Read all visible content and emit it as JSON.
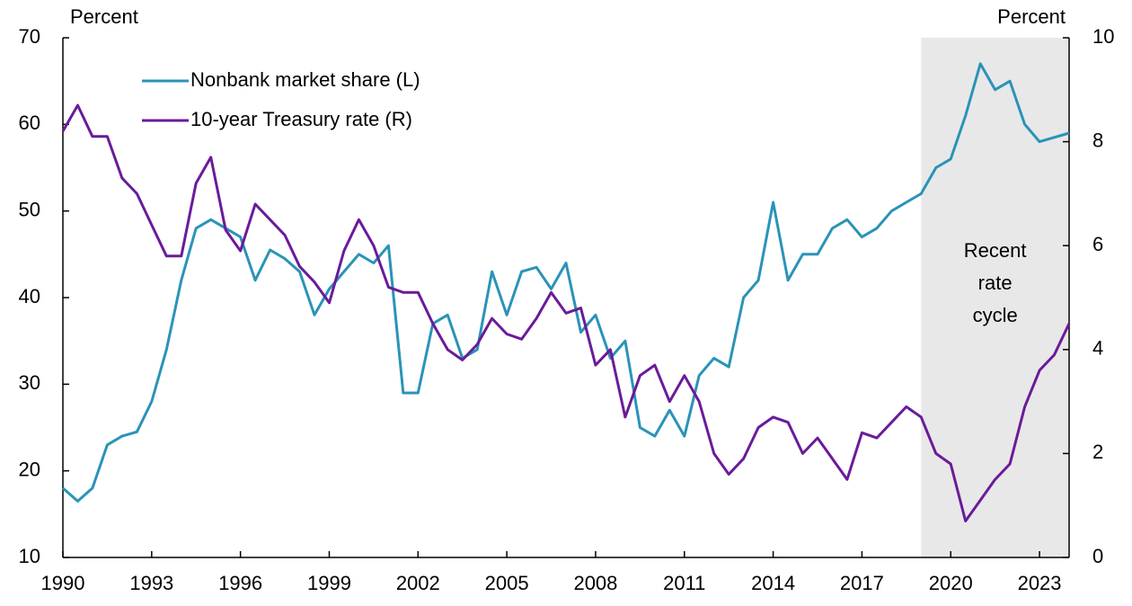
{
  "chart_data": {
    "type": "line",
    "y_label": "Percent",
    "y2_label": "Percent",
    "annotation": [
      "Recent",
      "rate",
      "cycle"
    ],
    "shade": [
      2019,
      2024
    ],
    "x": [
      1990,
      1990.5,
      1991,
      1991.5,
      1992,
      1992.5,
      1993,
      1993.5,
      1994,
      1994.5,
      1995,
      1995.5,
      1996,
      1996.5,
      1997,
      1997.5,
      1998,
      1998.5,
      1999,
      1999.5,
      2000,
      2000.5,
      2001,
      2001.5,
      2002,
      2002.5,
      2003,
      2003.5,
      2004,
      2004.5,
      2005,
      2005.5,
      2006,
      2006.5,
      2007,
      2007.5,
      2008,
      2008.5,
      2009,
      2009.5,
      2010,
      2010.5,
      2011,
      2011.5,
      2012,
      2012.5,
      2013,
      2013.5,
      2014,
      2014.5,
      2015,
      2015.5,
      2016,
      2016.5,
      2017,
      2017.5,
      2018,
      2018.5,
      2019,
      2019.5,
      2020,
      2020.5,
      2021,
      2021.5,
      2022,
      2022.5,
      2023,
      2023.5,
      2024
    ],
    "series": [
      {
        "name": "Nonbank market share (L)",
        "color": "#2a93b8",
        "values": [
          18,
          16.5,
          18,
          23,
          24,
          24.5,
          28,
          34,
          42,
          48,
          49,
          48,
          47,
          42,
          45.5,
          44.5,
          43,
          38,
          41,
          43,
          45,
          44,
          46,
          29,
          29,
          37,
          38,
          33,
          34,
          43,
          38,
          43,
          43.5,
          41,
          44,
          36,
          38,
          33,
          35,
          25,
          24,
          27,
          24,
          31,
          33,
          32,
          40,
          42,
          51,
          42,
          45,
          45,
          48,
          49,
          47,
          48,
          50,
          51,
          52,
          55,
          56,
          61,
          67,
          64,
          65,
          60,
          58,
          58.5,
          59
        ]
      },
      {
        "name": "10-year Treasury rate (R)",
        "color": "#6a1b9a",
        "axis": "y2",
        "values": [
          8.2,
          8.7,
          8.1,
          8.1,
          7.3,
          7.0,
          6.4,
          5.8,
          5.8,
          7.2,
          7.7,
          6.3,
          5.9,
          6.8,
          6.5,
          6.2,
          5.6,
          5.3,
          4.9,
          5.9,
          6.5,
          6.0,
          5.2,
          5.1,
          5.1,
          4.5,
          4.0,
          3.8,
          4.1,
          4.6,
          4.3,
          4.2,
          4.6,
          5.1,
          4.7,
          4.8,
          3.7,
          4.0,
          2.7,
          3.5,
          3.7,
          3.0,
          3.5,
          3.0,
          2.0,
          1.6,
          1.9,
          2.5,
          2.7,
          2.6,
          2.0,
          2.3,
          1.9,
          1.5,
          2.4,
          2.3,
          2.6,
          2.9,
          2.7,
          2.0,
          1.8,
          0.7,
          1.1,
          1.5,
          1.8,
          2.9,
          3.6,
          3.9,
          4.5
        ]
      }
    ],
    "xlim": [
      1990,
      2024
    ],
    "xticks": [
      1990,
      1993,
      1996,
      1999,
      2002,
      2005,
      2008,
      2011,
      2014,
      2017,
      2020,
      2023
    ],
    "ylim": [
      10,
      70
    ],
    "yticks": [
      10,
      20,
      30,
      40,
      50,
      60,
      70
    ],
    "y2lim": [
      0,
      10
    ],
    "y2ticks": [
      0,
      2,
      4,
      6,
      8,
      10
    ],
    "shade_color": "#e8e8e8"
  }
}
